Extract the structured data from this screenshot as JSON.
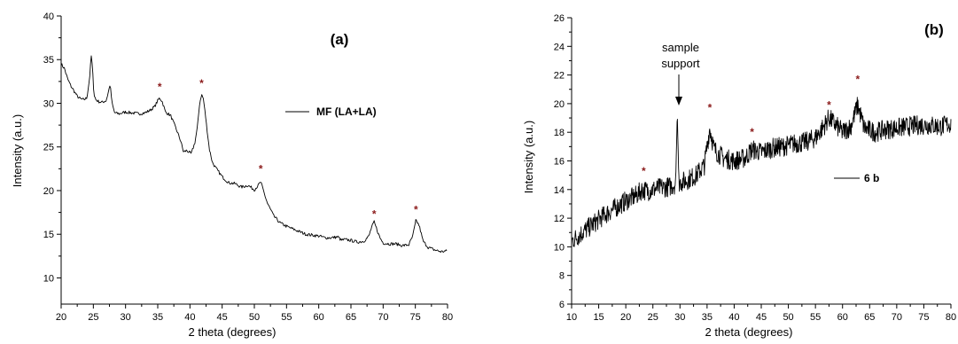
{
  "chart_data": [
    {
      "type": "line",
      "panel_label": "(a)",
      "xlabel": "2 theta (degrees)",
      "ylabel": "Intensity (a.u.)",
      "xlim": [
        20,
        80
      ],
      "ylim": [
        7,
        40
      ],
      "xticks": [
        20,
        25,
        30,
        35,
        40,
        45,
        50,
        55,
        60,
        65,
        70,
        75,
        80
      ],
      "yticks": [
        10,
        15,
        20,
        25,
        30,
        35,
        40
      ],
      "legend": "MF (LA+LA)",
      "legend_position": "upper-right",
      "marker_color": "#8b1a1a",
      "peak_markers": [
        {
          "x": 35.3,
          "y": 31.9,
          "label": "*"
        },
        {
          "x": 41.8,
          "y": 32.3,
          "label": "*"
        },
        {
          "x": 51.0,
          "y": 22.5,
          "label": "*"
        },
        {
          "x": 68.6,
          "y": 17.3,
          "label": "*"
        },
        {
          "x": 75.1,
          "y": 17.8,
          "label": "*"
        }
      ],
      "series": [
        {
          "x": [
            20,
            20.5,
            21,
            21.5,
            22,
            22.5,
            23,
            23.5,
            24,
            24.4,
            24.7,
            24.9,
            25.1,
            25.4,
            25.8,
            26.3,
            27,
            27.4,
            27.6,
            27.9,
            28.3,
            29,
            30,
            31,
            32,
            33,
            33.8,
            34.5,
            35,
            35.3,
            35.7,
            36.2,
            37,
            38,
            38.6,
            39,
            39.5,
            40.2,
            40.8,
            41.2,
            41.5,
            41.8,
            42.1,
            42.5,
            43,
            43.5,
            44,
            45,
            46,
            47,
            48,
            49,
            50,
            50.6,
            51,
            51.4,
            52,
            53,
            54,
            55,
            56,
            57,
            58,
            59,
            60,
            61,
            62,
            63,
            63.5,
            64,
            65,
            66,
            67,
            67.8,
            68.2,
            68.6,
            69,
            69.5,
            70,
            71,
            72,
            73,
            74,
            74.6,
            75.1,
            75.6,
            76.2,
            77,
            78,
            79,
            80
          ],
          "y": [
            34.5,
            34.0,
            32.8,
            32.0,
            31.4,
            30.8,
            30.5,
            30.4,
            30.6,
            32.8,
            35.6,
            33.5,
            31.0,
            30.4,
            30.2,
            30.1,
            30.3,
            31.5,
            32.2,
            30.0,
            28.9,
            28.8,
            29.0,
            28.9,
            28.8,
            28.9,
            29.2,
            29.6,
            30.3,
            30.6,
            30.2,
            29.0,
            28.6,
            26.8,
            25.6,
            24.4,
            24.6,
            24.2,
            25.6,
            27.5,
            30.0,
            31.0,
            30.5,
            28.0,
            24.8,
            23.2,
            22.6,
            21.6,
            20.9,
            20.8,
            20.4,
            20.6,
            20.1,
            20.6,
            21.0,
            20.0,
            18.6,
            17.1,
            16.3,
            15.9,
            15.6,
            15.3,
            15.0,
            14.9,
            14.8,
            14.6,
            14.6,
            14.7,
            14.3,
            14.4,
            14.3,
            14.1,
            14.2,
            14.8,
            15.8,
            16.4,
            15.6,
            14.6,
            14.0,
            13.9,
            13.9,
            13.7,
            13.8,
            14.8,
            16.6,
            16.0,
            14.2,
            13.5,
            13.2,
            13.0,
            13.1
          ]
        }
      ]
    },
    {
      "type": "line",
      "panel_label": "(b)",
      "xlabel": "2 theta (degrees)",
      "ylabel": "Intensity (a.u.)",
      "xlim": [
        10,
        80
      ],
      "ylim": [
        6,
        26
      ],
      "xticks": [
        10,
        15,
        20,
        25,
        30,
        35,
        40,
        45,
        50,
        55,
        60,
        65,
        70,
        75,
        80
      ],
      "yticks": [
        6,
        8,
        10,
        12,
        14,
        16,
        18,
        20,
        22,
        24,
        26
      ],
      "legend": "6 b",
      "legend_position": "center-right",
      "marker_color": "#8b1a1a",
      "annotation": {
        "text_line1": "sample",
        "text_line2": "support",
        "x": 29.5,
        "y": 19.5
      },
      "peak_markers": [
        {
          "x": 23.3,
          "y": 15.3,
          "label": "*"
        },
        {
          "x": 35.5,
          "y": 19.7,
          "label": "*"
        },
        {
          "x": 43.3,
          "y": 18.0,
          "label": "*"
        },
        {
          "x": 57.5,
          "y": 19.9,
          "label": "*"
        },
        {
          "x": 62.8,
          "y": 21.7,
          "label": "*"
        }
      ],
      "series": [
        {
          "x": [
            10,
            12,
            14,
            16,
            18,
            20,
            22,
            23,
            24,
            26,
            28,
            29.2,
            29.5,
            29.8,
            31,
            33,
            34.5,
            35.5,
            36.3,
            38,
            40,
            42,
            43.3,
            45,
            47,
            49,
            51,
            53,
            55,
            56.5,
            57.5,
            58.5,
            60,
            61.5,
            62.8,
            64,
            66,
            68,
            70,
            72,
            74,
            76,
            78,
            80
          ],
          "y": [
            10.4,
            11.0,
            11.6,
            12.2,
            12.7,
            13.2,
            13.6,
            14.0,
            13.9,
            14.1,
            14.2,
            14.4,
            19.4,
            14.5,
            14.6,
            15.0,
            15.7,
            18.3,
            16.8,
            16.2,
            16.0,
            16.2,
            16.8,
            16.6,
            16.9,
            17.0,
            17.2,
            17.3,
            17.6,
            18.4,
            19.0,
            18.6,
            18.0,
            18.4,
            19.9,
            18.3,
            18.0,
            18.2,
            18.3,
            18.4,
            18.5,
            18.5,
            18.4,
            18.6
          ]
        }
      ]
    }
  ]
}
